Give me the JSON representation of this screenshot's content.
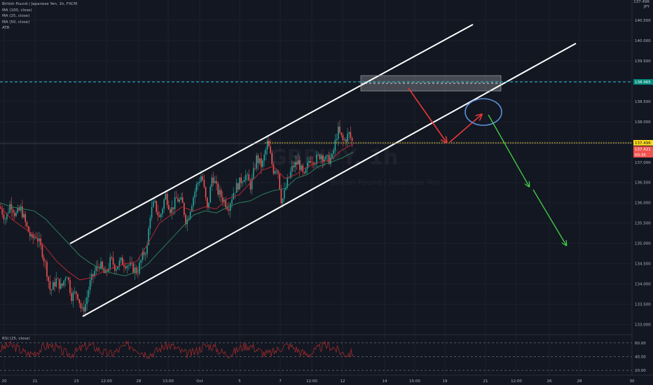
{
  "legend": {
    "title": "British Pound / Japanese Yen, 1h, FXCM",
    "indicators": [
      "MA (100, close)",
      "MA (25, close)",
      "MA (50, close)",
      "ATR"
    ]
  },
  "corner": {
    "line1": "137.496",
    "line2": "JPY"
  },
  "rsi_panel": {
    "title": "RSI (25, close)",
    "levels": [
      "60.00",
      "40.00",
      "20.00"
    ]
  },
  "colors": {
    "background": "#131722",
    "channel": "#ffffff",
    "bull_candle": "#26a69a",
    "bear_candle": "#ef5350",
    "ma_red": "#b22833",
    "ma_green": "#2e7d5b",
    "resistance_dashed": "#26c6da",
    "price_dotted": "#f9d71c",
    "red_arrow": "#e53935",
    "green_arrow": "#43d143",
    "ellipse": "#5b8fd6",
    "rsi_line": "#9c2a2a"
  },
  "chart_data": {
    "type": "line",
    "title": "British Pound / Japanese Yen, 1h, FXCM",
    "ylim": [
      132.75,
      141.0
    ],
    "x_ticks": [
      "20",
      "21",
      "23",
      "12:00",
      "28",
      "13:00",
      "Oct",
      "5",
      "7",
      "12:00",
      "12",
      "14",
      "15:00",
      "19",
      "21",
      "12:00",
      "26",
      "28",
      "30"
    ],
    "y_ticks": [
      "140.500",
      "140.000",
      "139.500",
      "139.000",
      "138.500",
      "138.000",
      "137.500",
      "137.000",
      "136.500",
      "136.000",
      "135.500",
      "135.000",
      "134.500",
      "134.000",
      "133.500",
      "133.000"
    ],
    "price_labels": {
      "current": "137.496",
      "last": "137.421",
      "atr": "00:35",
      "resistance": "138.965"
    },
    "price_path": {
      "x": [
        0,
        8,
        15,
        22,
        30,
        38,
        45,
        52,
        60,
        66,
        72,
        80,
        88,
        95,
        102,
        110,
        117,
        122,
        128,
        135,
        142,
        150,
        158,
        165,
        172,
        180,
        188,
        196,
        204,
        210,
        214,
        220,
        228,
        236,
        244,
        252,
        260,
        266,
        272,
        280,
        288,
        296,
        303,
        310,
        318,
        326,
        334,
        342,
        350,
        358,
        366,
        374,
        382,
        390,
        396,
        402,
        410,
        418,
        426,
        434,
        442,
        450,
        458,
        466,
        474,
        482,
        490,
        498,
        504
      ],
      "y": [
        135.9,
        135.6,
        136.0,
        135.7,
        135.85,
        135.4,
        135.1,
        135.2,
        134.8,
        134.4,
        133.8,
        134.1,
        133.9,
        134.3,
        133.7,
        133.8,
        133.3,
        133.5,
        134.0,
        134.3,
        134.5,
        134.2,
        134.6,
        134.4,
        134.55,
        134.5,
        134.4,
        134.3,
        134.7,
        134.9,
        135.7,
        136.0,
        135.6,
        136.2,
        135.8,
        136.1,
        136.0,
        135.5,
        135.9,
        136.4,
        136.7,
        135.8,
        136.7,
        136.3,
        136.1,
        135.9,
        136.3,
        136.5,
        136.7,
        136.4,
        137.1,
        136.9,
        137.5,
        136.8,
        136.9,
        136.0,
        136.5,
        136.9,
        137.0,
        136.6,
        137.1,
        137.05,
        137.2,
        137.05,
        137.1,
        137.8,
        137.5,
        137.7,
        137.45
      ]
    },
    "series": [
      {
        "values": [
          136.0,
          135.9,
          135.85,
          135.8,
          135.6,
          135.3,
          135.0,
          134.7,
          134.5,
          134.35,
          134.25,
          134.2,
          134.3,
          134.5,
          134.8,
          135.1,
          135.4,
          135.7,
          135.8,
          135.75,
          135.9,
          136.0,
          136.05,
          136.2,
          136.3,
          136.35,
          136.6,
          136.7,
          136.9,
          137.0,
          137.1,
          137.25
        ]
      },
      {
        "values": [
          135.9,
          135.6,
          135.4,
          135.2,
          134.9,
          134.55,
          134.3,
          134.1,
          134.15,
          134.3,
          134.4,
          134.5,
          134.55,
          135.0,
          135.5,
          135.7,
          135.9,
          135.8,
          135.9,
          135.85,
          136.1,
          136.2,
          136.5,
          136.8,
          136.9,
          136.6,
          136.7,
          136.9,
          137.0,
          137.05,
          137.3,
          137.45
        ]
      }
    ]
  }
}
